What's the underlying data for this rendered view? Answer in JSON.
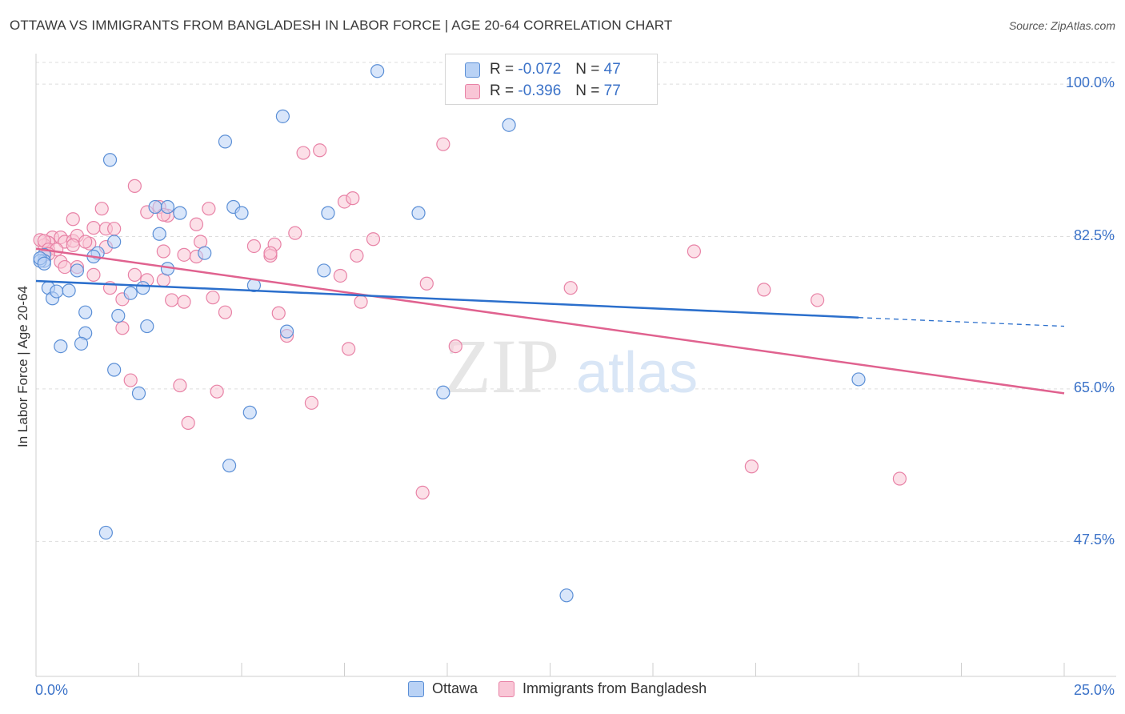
{
  "title": "OTTAWA VS IMMIGRANTS FROM BANGLADESH IN LABOR FORCE | AGE 20-64 CORRELATION CHART",
  "source": "Source: ZipAtlas.com",
  "watermark": {
    "part1": "ZIP",
    "part2": "atlas"
  },
  "legend_top": {
    "rows": [
      {
        "r_label": "R =",
        "r_value": "-0.072",
        "n_label": "N =",
        "n_value": "47"
      },
      {
        "r_label": "R =",
        "r_value": "-0.396",
        "n_label": "N =",
        "n_value": "77"
      }
    ]
  },
  "legend_bottom": {
    "items": [
      "Ottawa",
      "Immigrants from Bangladesh"
    ]
  },
  "colors": {
    "ottawa_fill": "#b9d2f5",
    "ottawa_stroke": "#5b8fd6",
    "ottawa_line": "#2b6fcc",
    "bangladesh_fill": "#f9c6d6",
    "bangladesh_stroke": "#e882a6",
    "bangladesh_line": "#e0628f",
    "tick_label": "#3b72c8",
    "grid": "#dddddd"
  },
  "chart_data": {
    "type": "scatter",
    "title": "OTTAWA VS IMMIGRANTS FROM BANGLADESH IN LABOR FORCE | AGE 20-64 CORRELATION CHART",
    "xlabel": "",
    "ylabel": "In Labor Force | Age 20-64",
    "xlim": [
      0,
      25
    ],
    "ylim": [
      32.0,
      103.5
    ],
    "x_tick_labels": [
      "0.0%",
      "25.0%"
    ],
    "y_ticks": [
      {
        "value": 100.0,
        "label": "100.0%"
      },
      {
        "value": 82.5,
        "label": "82.5%"
      },
      {
        "value": 65.0,
        "label": "65.0%"
      },
      {
        "value": 47.5,
        "label": "47.5%"
      }
    ],
    "grid": true,
    "series": [
      {
        "name": "Ottawa",
        "points": [
          [
            8.3,
            101.5
          ],
          [
            6.0,
            96.3
          ],
          [
            11.5,
            95.3
          ],
          [
            1.8,
            91.3
          ],
          [
            4.6,
            93.4
          ],
          [
            2.9,
            85.9
          ],
          [
            3.2,
            85.9
          ],
          [
            4.8,
            85.9
          ],
          [
            3.5,
            85.2
          ],
          [
            5.0,
            85.2
          ],
          [
            7.1,
            85.2
          ],
          [
            9.3,
            85.2
          ],
          [
            3.0,
            82.8
          ],
          [
            1.9,
            81.9
          ],
          [
            0.2,
            80.4
          ],
          [
            1.5,
            80.6
          ],
          [
            1.4,
            80.2
          ],
          [
            4.1,
            80.6
          ],
          [
            0.2,
            79.7
          ],
          [
            1.0,
            78.6
          ],
          [
            3.2,
            78.8
          ],
          [
            7.0,
            78.6
          ],
          [
            0.3,
            76.6
          ],
          [
            0.4,
            75.4
          ],
          [
            0.5,
            76.2
          ],
          [
            0.8,
            76.3
          ],
          [
            2.3,
            76.0
          ],
          [
            2.6,
            76.6
          ],
          [
            5.3,
            76.9
          ],
          [
            1.2,
            73.8
          ],
          [
            2.0,
            73.4
          ],
          [
            2.7,
            72.2
          ],
          [
            1.2,
            71.4
          ],
          [
            0.6,
            69.9
          ],
          [
            1.1,
            70.2
          ],
          [
            6.1,
            71.6
          ],
          [
            1.9,
            67.2
          ],
          [
            2.5,
            64.5
          ],
          [
            9.9,
            64.6
          ],
          [
            5.2,
            62.3
          ],
          [
            4.7,
            56.2
          ],
          [
            20.0,
            66.1
          ],
          [
            1.7,
            48.5
          ],
          [
            12.9,
            41.3
          ],
          [
            0.1,
            79.7
          ],
          [
            0.1,
            80.0
          ],
          [
            0.2,
            79.4
          ]
        ]
      },
      {
        "name": "Immigrants from Bangladesh",
        "points": [
          [
            9.9,
            93.1
          ],
          [
            6.5,
            92.1
          ],
          [
            6.9,
            92.4
          ],
          [
            2.4,
            88.3
          ],
          [
            7.5,
            86.5
          ],
          [
            7.7,
            86.9
          ],
          [
            1.6,
            85.7
          ],
          [
            2.7,
            85.3
          ],
          [
            3.0,
            85.9
          ],
          [
            3.2,
            84.9
          ],
          [
            3.1,
            85.0
          ],
          [
            4.2,
            85.7
          ],
          [
            0.9,
            84.5
          ],
          [
            1.4,
            83.5
          ],
          [
            1.7,
            83.4
          ],
          [
            1.9,
            83.4
          ],
          [
            3.9,
            83.9
          ],
          [
            6.3,
            82.9
          ],
          [
            0.4,
            82.4
          ],
          [
            0.6,
            82.4
          ],
          [
            0.7,
            81.9
          ],
          [
            0.9,
            82.0
          ],
          [
            1.0,
            82.6
          ],
          [
            0.3,
            81.8
          ],
          [
            0.2,
            81.5
          ],
          [
            5.3,
            81.4
          ],
          [
            5.8,
            81.6
          ],
          [
            8.2,
            82.2
          ],
          [
            0.1,
            82.1
          ],
          [
            0.2,
            82.0
          ],
          [
            0.3,
            81.0
          ],
          [
            0.5,
            81.0
          ],
          [
            0.9,
            81.5
          ],
          [
            1.3,
            81.7
          ],
          [
            1.7,
            81.3
          ],
          [
            3.1,
            80.8
          ],
          [
            3.6,
            80.4
          ],
          [
            3.9,
            80.2
          ],
          [
            4.0,
            81.9
          ],
          [
            5.7,
            80.3
          ],
          [
            5.7,
            80.6
          ],
          [
            7.8,
            80.3
          ],
          [
            16.0,
            80.8
          ],
          [
            0.3,
            80.5
          ],
          [
            0.6,
            79.6
          ],
          [
            0.7,
            79.0
          ],
          [
            1.0,
            79.0
          ],
          [
            1.4,
            78.1
          ],
          [
            2.4,
            78.1
          ],
          [
            2.7,
            77.5
          ],
          [
            3.1,
            77.5
          ],
          [
            7.4,
            78.0
          ],
          [
            9.5,
            77.1
          ],
          [
            13.0,
            76.6
          ],
          [
            17.7,
            76.4
          ],
          [
            1.8,
            76.6
          ],
          [
            2.1,
            75.3
          ],
          [
            3.3,
            75.2
          ],
          [
            4.3,
            75.5
          ],
          [
            3.6,
            75.0
          ],
          [
            5.9,
            73.7
          ],
          [
            4.6,
            73.8
          ],
          [
            7.9,
            75.0
          ],
          [
            19.0,
            75.2
          ],
          [
            7.6,
            69.6
          ],
          [
            6.1,
            71.1
          ],
          [
            10.2,
            69.9
          ],
          [
            2.1,
            72.0
          ],
          [
            2.3,
            66.0
          ],
          [
            3.5,
            65.4
          ],
          [
            4.4,
            64.7
          ],
          [
            6.7,
            63.4
          ],
          [
            3.7,
            61.1
          ],
          [
            17.4,
            56.1
          ],
          [
            21.0,
            54.7
          ],
          [
            9.4,
            53.1
          ],
          [
            1.2,
            81.9
          ]
        ]
      }
    ],
    "trend_lines": [
      {
        "series": "Ottawa",
        "x_start": 0,
        "y_start": 77.4,
        "x_solid_end": 20.0,
        "y_solid_end": 73.2,
        "x_end": 25.0,
        "y_end": 72.2,
        "dashed_after_solid_end": true
      },
      {
        "series": "Immigrants from Bangladesh",
        "x_start": 0,
        "y_start": 81.1,
        "x_end": 25.0,
        "y_end": 64.5
      }
    ]
  }
}
